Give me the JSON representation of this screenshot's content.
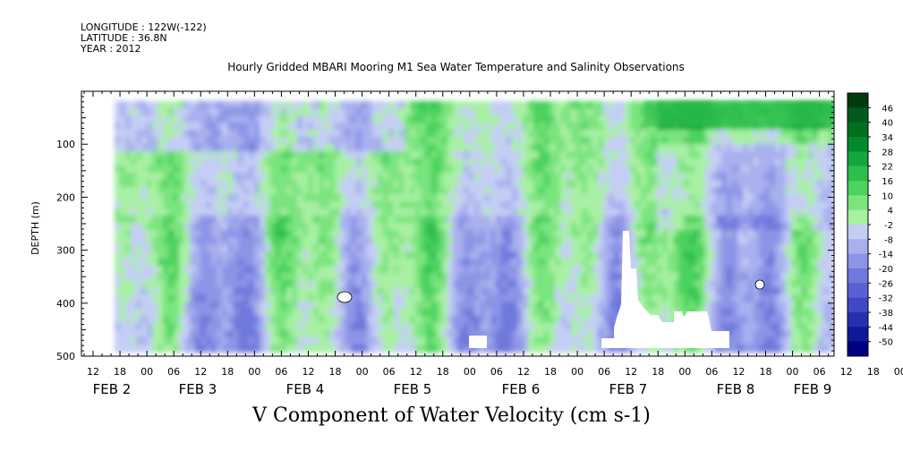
{
  "header": {
    "longitude": "LONGITUDE : 122W(-122)",
    "latitude": "LATITUDE : 36.8N",
    "year": "YEAR : 2012"
  },
  "chart_data": {
    "type": "heatmap",
    "title": "Hourly Gridded MBARI Mooring M1 Sea Water Temperature and Salinity Observations",
    "xlabel": "V Component of Water Velocity (cm s-1)",
    "ylabel": "DEPTH (m)",
    "y_axis": {
      "ticks": [
        100,
        200,
        300,
        400,
        500
      ],
      "range": [
        0,
        500
      ],
      "inverted": true
    },
    "x_axis": {
      "hour_labels": [
        "12",
        "18",
        "00",
        "06",
        "12",
        "18",
        "00",
        "06",
        "12",
        "18",
        "00",
        "06",
        "12",
        "18",
        "00",
        "06",
        "12",
        "18",
        "00",
        "06",
        "12",
        "18",
        "00",
        "06",
        "12",
        "18",
        "00",
        "06",
        "12",
        "18",
        "00",
        "06"
      ],
      "day_labels": [
        "FEB 2",
        "FEB 3",
        "FEB 4",
        "FEB 5",
        "FEB 6",
        "FEB 7",
        "FEB 8",
        "FEB 9"
      ]
    },
    "colorbar": {
      "levels": [
        46,
        40,
        34,
        28,
        22,
        16,
        10,
        4,
        -2,
        -8,
        -14,
        -20,
        -26,
        -32,
        -38,
        -44,
        -50
      ],
      "colors": [
        "#003a10",
        "#005a20",
        "#00701e",
        "#008c2e",
        "#14a83c",
        "#2ebe4e",
        "#4cd25e",
        "#7ae47e",
        "#a8f0a4",
        "#c4cef4",
        "#a8b0ee",
        "#8c94e6",
        "#7078dc",
        "#5a60d4",
        "#4048c8",
        "#2830b0",
        "#10189a",
        "#000080"
      ]
    }
  }
}
